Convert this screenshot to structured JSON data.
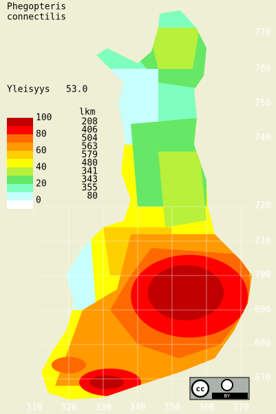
{
  "title": [
    "Phegopteris",
    "connectilis"
  ],
  "frequency": {
    "label": "Yleisyys",
    "value": "53.0"
  },
  "legend": {
    "header": "lkm",
    "scale_labels": [
      100,
      80,
      60,
      40,
      20,
      0
    ],
    "counts": [
      208,
      406,
      504,
      563,
      579,
      480,
      341,
      343,
      355,
      80
    ],
    "colors": [
      "#c00000",
      "#ff0000",
      "#ff6a00",
      "#ff9a00",
      "#ffd000",
      "#ffff00",
      "#b8f03c",
      "#66e866",
      "#7fffbf",
      "#c8ffff",
      "#ffffff"
    ]
  },
  "axes": {
    "y_labels": [
      "770",
      "760",
      "750",
      "740",
      "720",
      "710",
      "700",
      "690",
      "680",
      "670"
    ],
    "x_labels": [
      "310",
      "320",
      "330",
      "340",
      "350",
      "360",
      "370"
    ]
  },
  "license": {
    "cc": "cc",
    "by": "BY"
  }
}
